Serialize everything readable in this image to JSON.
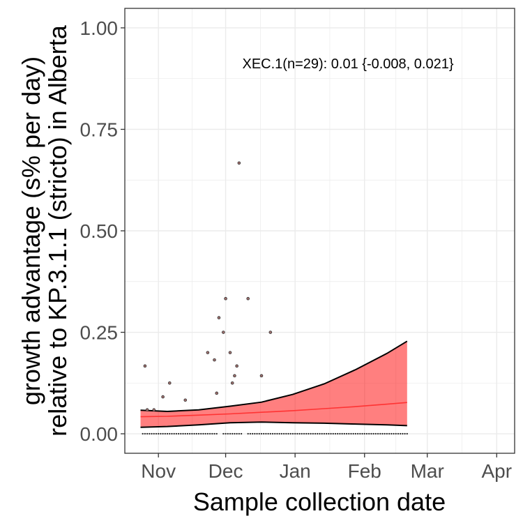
{
  "chart_data": {
    "type": "scatter",
    "title": "",
    "xlabel": "Sample collection date",
    "ylabel_lines": [
      "growth advantage (s% per day)",
      "relative to KP.3.1.1 (stricto) in Alberta"
    ],
    "annotation": "XEC.1(n=29): 0.01 {-0.008, 0.021}",
    "x_ticks": [
      {
        "date": "2024-11-01",
        "label": "Nov"
      },
      {
        "date": "2024-12-01",
        "label": "Dec"
      },
      {
        "date": "2025-01-01",
        "label": "Jan"
      },
      {
        "date": "2025-02-01",
        "label": "Feb"
      },
      {
        "date": "2025-03-01",
        "label": "Mar"
      },
      {
        "date": "2025-04-01",
        "label": "Apr"
      }
    ],
    "y_ticks": [
      {
        "value": 0.0,
        "label": "0.00"
      },
      {
        "value": 0.25,
        "label": "0.25"
      },
      {
        "value": 0.5,
        "label": "0.50"
      },
      {
        "value": 0.75,
        "label": "0.75"
      },
      {
        "value": 1.0,
        "label": "1.00"
      }
    ],
    "xlim": [
      "2024-10-17",
      "2025-04-09"
    ],
    "ylim": [
      -0.048,
      1.048
    ],
    "grid": true,
    "colors": {
      "ribbon": "#ff0000",
      "ribbon_opacity": 0.5,
      "fit_line": "#ff3333",
      "bounds": "#000000",
      "points": "#333333"
    },
    "fit": {
      "x": [
        "2024-10-24",
        "2024-11-05",
        "2024-11-19",
        "2024-12-03",
        "2024-12-17",
        "2024-12-31",
        "2025-01-14",
        "2025-01-28",
        "2025-02-11",
        "2025-02-20"
      ],
      "y": [
        0.042,
        0.043,
        0.046,
        0.049,
        0.053,
        0.057,
        0.062,
        0.067,
        0.073,
        0.077
      ],
      "lower": [
        0.016,
        0.018,
        0.022,
        0.027,
        0.029,
        0.027,
        0.026,
        0.024,
        0.022,
        0.02
      ],
      "upper": [
        0.058,
        0.055,
        0.059,
        0.068,
        0.078,
        0.097,
        0.123,
        0.158,
        0.198,
        0.228
      ]
    },
    "points": [
      {
        "x": "2024-10-26",
        "y": 0.167
      },
      {
        "x": "2024-10-27",
        "y": 0.059
      },
      {
        "x": "2024-10-30",
        "y": 0.059
      },
      {
        "x": "2024-11-03",
        "y": 0.091
      },
      {
        "x": "2024-11-06",
        "y": 0.125
      },
      {
        "x": "2024-11-13",
        "y": 0.083
      },
      {
        "x": "2024-11-23",
        "y": 0.2
      },
      {
        "x": "2024-11-26",
        "y": 0.182
      },
      {
        "x": "2024-11-27",
        "y": 0.1
      },
      {
        "x": "2024-11-28",
        "y": 0.286
      },
      {
        "x": "2024-11-30",
        "y": 0.25
      },
      {
        "x": "2024-12-01",
        "y": 0.333
      },
      {
        "x": "2024-12-03",
        "y": 0.2
      },
      {
        "x": "2024-12-04",
        "y": 0.125
      },
      {
        "x": "2024-12-05",
        "y": 0.143
      },
      {
        "x": "2024-12-06",
        "y": 0.167
      },
      {
        "x": "2024-12-07",
        "y": 0.667
      },
      {
        "x": "2024-12-11",
        "y": 0.333
      },
      {
        "x": "2024-12-17",
        "y": 0.143
      },
      {
        "x": "2024-12-21",
        "y": 0.25
      }
    ],
    "zero_runs": [
      [
        "2024-10-25",
        "2024-11-27"
      ],
      [
        "2024-11-30",
        "2024-12-08"
      ],
      [
        "2024-12-11",
        "2025-02-20"
      ]
    ]
  }
}
